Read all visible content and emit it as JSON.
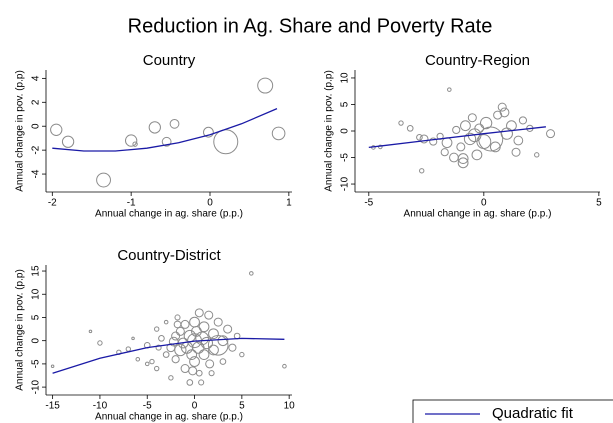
{
  "title": "Reduction in Ag. Share and Poverty Rate",
  "chart_data": [
    {
      "type": "scatter",
      "title": "Country",
      "x_label": "Annual change in ag. share (p.p.)",
      "y_label": "Annual change in pov. (p.p)",
      "xlim": [
        -2.08,
        1.04
      ],
      "ylim": [
        -5.5,
        4.7
      ],
      "xticks": [
        -2,
        -1,
        0,
        1
      ],
      "yticks": [
        -4,
        -2,
        0,
        2,
        4
      ],
      "series": [
        {
          "type": "scatter",
          "color": "#8c8c8c",
          "x": [
            -1.95,
            -1.8,
            -1.35,
            -1.0,
            -0.95,
            -0.7,
            -0.55,
            -0.45,
            -0.02,
            0.2,
            0.7,
            0.87
          ],
          "values": [
            -0.3,
            -1.3,
            -4.5,
            -1.2,
            -1.5,
            -0.1,
            -1.3,
            0.2,
            -0.5,
            -1.3,
            3.4,
            -0.6
          ],
          "sizes": [
            2,
            2,
            3,
            2,
            0.3,
            2,
            1.2,
            1.2,
            1.5,
            9,
            3.5,
            2.5
          ]
        },
        {
          "type": "line",
          "name": "Quadratic fit",
          "color": "#1a1aa6",
          "x": [
            -2,
            -1.6,
            -1.2,
            -0.8,
            -0.4,
            0,
            0.4,
            0.85
          ],
          "values": [
            -1.84,
            -2.07,
            -2.07,
            -1.84,
            -1.39,
            -0.71,
            0.2,
            1.47
          ]
        }
      ]
    },
    {
      "type": "scatter",
      "title": "Country-Region",
      "x_label": "Annual change in ag. share (p.p.)",
      "y_label": "Annual change in pov. (p.p)",
      "xlim": [
        -5.6,
        5.05
      ],
      "ylim": [
        -11.5,
        11.5
      ],
      "xticks": [
        -5,
        0,
        5
      ],
      "yticks": [
        -10,
        -5,
        0,
        5,
        10
      ],
      "series": [
        {
          "type": "scatter",
          "color": "#8c8c8c",
          "x": [
            -4.8,
            -4.5,
            -3.6,
            -3.2,
            -2.7,
            -2.6,
            -2.2,
            -1.9,
            -1.6,
            -1.5,
            -1.3,
            -1,
            -0.9,
            -0.8,
            -0.6,
            -0.5,
            -0.3,
            -0.2,
            0,
            0.1,
            0.3,
            0.5,
            0.6,
            0.8,
            1,
            1.2,
            1.4,
            1.7,
            2,
            2.3,
            2.9,
            -1.2,
            -0.4,
            0.9,
            -2.8,
            -0.9,
            1.5,
            -1.7
          ],
          "values": [
            -3.1,
            -3,
            1.5,
            0.5,
            -7.5,
            -1.5,
            -2,
            -1,
            -2.2,
            7.8,
            -5,
            -3,
            -6,
            1,
            -1.5,
            2.5,
            -4.5,
            0.5,
            -2,
            1.5,
            -1.5,
            -3,
            3,
            4.5,
            -0.5,
            1,
            -4,
            2,
            0.5,
            -4.5,
            -0.5,
            0.2,
            -0.8,
            3.5,
            -1.2,
            -5.2,
            -1.8,
            -4
          ],
          "sizes": [
            0.2,
            0.2,
            0.3,
            0.5,
            0.3,
            1,
            0.8,
            0.6,
            1.5,
            0.2,
            1.2,
            1,
            1.5,
            1.5,
            2,
            1,
            1.5,
            1.2,
            3,
            2,
            9,
            1.5,
            1,
            1,
            2,
            1.5,
            1,
            0.8,
            0.6,
            0.3,
            1,
            0.8,
            2.5,
            1.2,
            0.5,
            1.5,
            1.2,
            0.8
          ]
        },
        {
          "type": "line",
          "color": "#1a1aa6",
          "x": [
            -5,
            -2.5,
            0,
            2.7
          ],
          "values": [
            -3.1,
            -1.8,
            -0.5,
            0.8
          ]
        }
      ]
    },
    {
      "type": "scatter",
      "title": "Country-District",
      "x_label": "Annual change in ag. share (p.p.)",
      "y_label": "Annual change in pov. (p.p)",
      "xlim": [
        -15.7,
        10.3
      ],
      "ylim": [
        -11.7,
        16.3
      ],
      "xticks": [
        -15,
        -10,
        -5,
        0,
        5,
        10
      ],
      "yticks": [
        -10,
        -5,
        0,
        5,
        10,
        15
      ],
      "series": [
        {
          "type": "scatter",
          "color": "#8c8c8c",
          "x": [
            -15,
            -11,
            -10,
            -8,
            -7,
            -6.5,
            -5,
            -5,
            -4,
            -4,
            -3.5,
            -3,
            -3,
            -2.5,
            -2.5,
            -2,
            -2,
            -1.8,
            -1.5,
            -1.5,
            -1.2,
            -1,
            -1,
            -0.8,
            -0.5,
            -0.5,
            -0.3,
            0,
            0,
            0,
            0.2,
            0.4,
            0.5,
            0.5,
            0.8,
            1,
            1,
            1.3,
            1.5,
            1.6,
            2,
            2,
            2.5,
            2.5,
            3,
            3,
            3.5,
            4,
            4.5,
            5,
            6,
            9.5,
            -6,
            -2.2,
            -1.8,
            1.8,
            -4.5,
            -0.2,
            0.7,
            -3.8
          ],
          "values": [
            -5.5,
            2,
            -0.5,
            -2.5,
            -1.8,
            0.5,
            -5,
            -1,
            2.5,
            -6,
            0.5,
            -3,
            4,
            -1.5,
            -8,
            1,
            -4,
            5,
            -2,
            2,
            -0.5,
            3.5,
            -6,
            -1.5,
            1,
            -9,
            -3,
            0,
            4,
            -4.5,
            2,
            -1.5,
            6,
            -7,
            0.5,
            -3,
            3,
            -0.5,
            5.5,
            -5,
            1.5,
            -2,
            4,
            -1,
            0,
            -4.5,
            2.5,
            -1.5,
            1,
            -3,
            14.5,
            -5.5,
            -4,
            -0.2,
            3.5,
            -7,
            -4.5,
            -6.5,
            -9,
            -1.5
          ],
          "sizes": [
            0.1,
            0.1,
            0.3,
            0.3,
            0.3,
            0.1,
            0.2,
            0.5,
            0.3,
            0.3,
            0.5,
            0.5,
            0.2,
            1,
            0.3,
            1,
            0.8,
            0.4,
            2,
            1,
            1.5,
            1,
            1,
            2,
            2,
            0.5,
            1.5,
            3,
            1.5,
            1.5,
            1.5,
            2,
            1,
            0.5,
            2.5,
            1.5,
            1.5,
            2,
            1,
            1,
            1.5,
            1.5,
            1,
            6,
            1.5,
            0.5,
            1,
            0.8,
            0.5,
            0.3,
            0.2,
            0.2,
            0.2,
            1.2,
            0.7,
            0.4,
            0.3,
            1,
            0.4,
            0.4
          ]
        },
        {
          "type": "line",
          "color": "#1a1aa6",
          "x": [
            -15,
            -10,
            -5,
            0,
            5,
            9.5
          ],
          "values": [
            -7,
            -3.8,
            -1.5,
            -0.1,
            0.5,
            0.3
          ]
        }
      ]
    }
  ]
}
